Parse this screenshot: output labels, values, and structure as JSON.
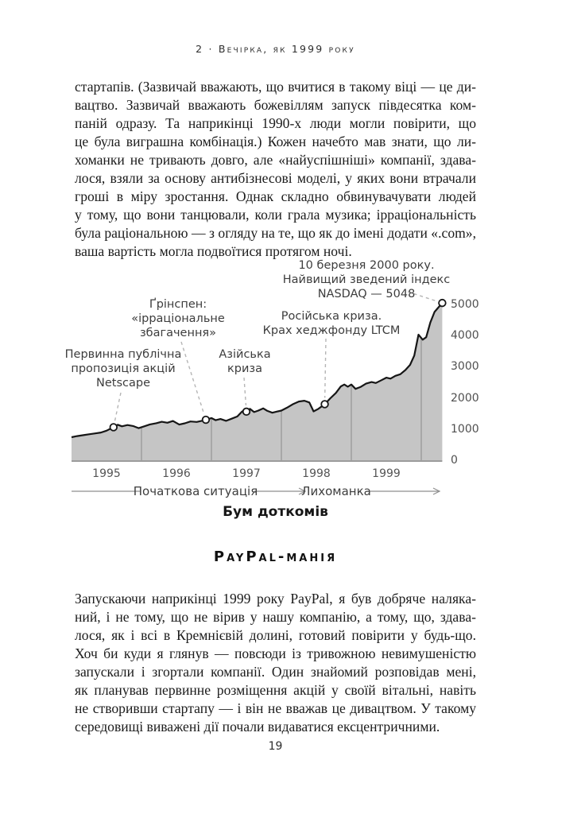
{
  "page": {
    "running_head": "2 · Вечірка, як 1999 року",
    "page_number": "19",
    "section_heading": "PayPal-манія",
    "paragraph1_lines": [
      "стартапів. (Зазвичай вважають, що вчитися в такому віці — це ди-",
      "вацтво. Зазвичай вважають божевіллям запуск півдесятка ком-",
      "паній одразу. Та наприкінці 1990-х люди могли повірити, що",
      "це була виграшна комбінація.) Кожен начебто мав знати, що ли-",
      "хоманки не тривають довго, але «найуспішніші» компанії, здава-",
      "лося, взяли за основу антибізнесові моделі, у яких вони втрачали",
      "гроші в міру зростання. Однак складно обвинувачувати людей",
      "у тому, що вони танцювали, коли грала музика; ірраціональність",
      "була раціональною — з огляду на те, що як до імені додати «.com»,",
      "ваша вартість могла подвоїтися протягом ночі."
    ],
    "paragraph2_lines": [
      "Запускаючи наприкінці 1999 року PayPal, я був добряче наляка-",
      "ний, і не тому, що не вірив у нашу компанію, а тому, що, здава-",
      "лося, як і всі в Кремнієвій долині, готовий повірити у будь-що.",
      "Хоч би куди я глянув — повсюди із тривожною невимушеністю",
      "запускали і згортали компанії. Один знайомий розповідав мені,",
      "як планував первинне розміщення акцій у своїй вітальні, навіть",
      "не створивши стартапу — і він не вважав це дивацтвом. У такому",
      "середовищі виважені дії почали видаватися ексцентричними."
    ]
  },
  "chart_data": {
    "type": "area",
    "title": "Бум доткомів",
    "series": [
      {
        "name": "Зведений індекс NASDAQ",
        "points": [
          [
            1995.0,
            740
          ],
          [
            1995.08,
            775
          ],
          [
            1995.17,
            805
          ],
          [
            1995.25,
            835
          ],
          [
            1995.33,
            860
          ],
          [
            1995.42,
            890
          ],
          [
            1995.5,
            950
          ],
          [
            1995.6,
            1060
          ],
          [
            1995.66,
            1140
          ],
          [
            1995.72,
            1090
          ],
          [
            1995.8,
            1130
          ],
          [
            1995.88,
            1100
          ],
          [
            1995.96,
            1030
          ],
          [
            1996.04,
            1090
          ],
          [
            1996.12,
            1150
          ],
          [
            1996.21,
            1190
          ],
          [
            1996.29,
            1235
          ],
          [
            1996.37,
            1205
          ],
          [
            1996.45,
            1260
          ],
          [
            1996.54,
            1145
          ],
          [
            1996.62,
            1185
          ],
          [
            1996.7,
            1245
          ],
          [
            1996.79,
            1230
          ],
          [
            1996.86,
            1265
          ],
          [
            1996.92,
            1300
          ],
          [
            1997.0,
            1355
          ],
          [
            1997.06,
            1285
          ],
          [
            1997.13,
            1325
          ],
          [
            1997.21,
            1265
          ],
          [
            1997.29,
            1335
          ],
          [
            1997.37,
            1405
          ],
          [
            1997.44,
            1570
          ],
          [
            1997.5,
            1560
          ],
          [
            1997.55,
            1650
          ],
          [
            1997.61,
            1545
          ],
          [
            1997.67,
            1595
          ],
          [
            1997.74,
            1665
          ],
          [
            1997.8,
            1585
          ],
          [
            1997.87,
            1525
          ],
          [
            1997.94,
            1565
          ],
          [
            1998.0,
            1595
          ],
          [
            1998.08,
            1685
          ],
          [
            1998.17,
            1805
          ],
          [
            1998.25,
            1885
          ],
          [
            1998.33,
            1910
          ],
          [
            1998.4,
            1855
          ],
          [
            1998.46,
            1570
          ],
          [
            1998.53,
            1650
          ],
          [
            1998.62,
            1800
          ],
          [
            1998.7,
            1990
          ],
          [
            1998.78,
            2160
          ],
          [
            1998.85,
            2370
          ],
          [
            1998.9,
            2430
          ],
          [
            1998.95,
            2360
          ],
          [
            1999.0,
            2430
          ],
          [
            1999.06,
            2290
          ],
          [
            1999.13,
            2350
          ],
          [
            1999.21,
            2460
          ],
          [
            1999.29,
            2510
          ],
          [
            1999.35,
            2480
          ],
          [
            1999.43,
            2570
          ],
          [
            1999.5,
            2650
          ],
          [
            1999.56,
            2620
          ],
          [
            1999.63,
            2710
          ],
          [
            1999.7,
            2760
          ],
          [
            1999.77,
            2890
          ],
          [
            1999.84,
            3060
          ],
          [
            1999.9,
            3360
          ],
          [
            1999.96,
            4030
          ],
          [
            2000.02,
            3870
          ],
          [
            2000.07,
            3950
          ],
          [
            2000.13,
            4420
          ],
          [
            2000.19,
            4760
          ],
          [
            2000.3,
            5048
          ]
        ]
      }
    ],
    "x_tick_labels": [
      "1995",
      "1996",
      "1997",
      "1998",
      "1999"
    ],
    "y_tick_values": [
      0,
      1000,
      2000,
      3000,
      4000,
      5000
    ],
    "y_tick_labels": [
      "0",
      "1000",
      "2000",
      "3000",
      "4000",
      "5000"
    ],
    "x_range": [
      1995,
      2000.3
    ],
    "y_range": [
      0,
      5300
    ],
    "gridline_years": [
      1996,
      1997,
      1998,
      1999,
      2000
    ],
    "markers": [
      {
        "year": 1995.6,
        "value": 1060
      },
      {
        "year": 1996.92,
        "value": 1300
      },
      {
        "year": 1997.5,
        "value": 1560
      },
      {
        "year": 1998.62,
        "value": 1800
      },
      {
        "year": 2000.3,
        "value": 5048
      }
    ],
    "annotations": [
      {
        "marker": 0,
        "lines": [
          "Первинна публічна",
          "пропозиція акцій",
          "Netscape"
        ]
      },
      {
        "marker": 1,
        "lines": [
          "Ґрінспен:",
          "«ірраціональне",
          "збагачення»"
        ]
      },
      {
        "marker": 2,
        "lines": [
          "Азійська",
          "криза"
        ]
      },
      {
        "marker": 3,
        "lines": [
          "Російська криза.",
          "Крах хеджфонду LTCM"
        ]
      },
      {
        "marker": 4,
        "lines": [
          "10 березня 2000 року.",
          "Найвищий зведений індекс",
          "NASDAQ — 5048"
        ]
      }
    ],
    "phases": [
      {
        "label": "Початкова ситуація"
      },
      {
        "label": "Лихоманка"
      }
    ],
    "colors": {
      "area_fill": "#c5c5c5",
      "line": "#161616",
      "gridline": "#9c9c9c",
      "baseline": "#9c9c9c",
      "marker_fill": "#ffffff",
      "marker_stroke": "#161616",
      "leader": "#b5b5b5",
      "phase_line": "#8f8f8f",
      "label_text": "#3d3d3d"
    }
  }
}
